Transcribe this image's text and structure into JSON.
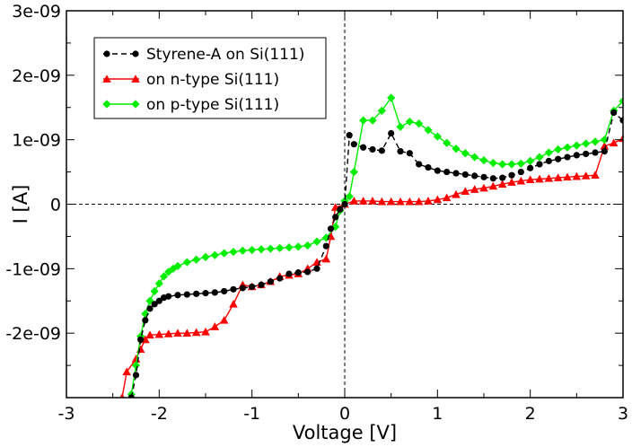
{
  "chart_data": {
    "type": "line",
    "title": "",
    "xlabel": "Voltage [V]",
    "ylabel": "I [A]",
    "xlim": [
      -3,
      3
    ],
    "ylim": [
      -3e-09,
      3e-09
    ],
    "x_ticks": [
      -3,
      -2,
      -1,
      0,
      1,
      2,
      3
    ],
    "x_tick_labels": [
      "-3",
      "-2",
      "-1",
      "0",
      "1",
      "2",
      "3"
    ],
    "y_ticks": [
      -2e-09,
      -1e-09,
      0,
      1e-09,
      2e-09,
      3e-09
    ],
    "y_tick_labels": [
      "-2e-09",
      "-1e-09",
      "0",
      "1e-09",
      "2e-09",
      "3e-09"
    ],
    "zero_lines": true,
    "legend_position": "top-left",
    "series": [
      {
        "name": "Styrene-A on Si(111)",
        "color": "#000000",
        "marker": "circle",
        "line_style": "dashed",
        "points": [
          [
            -2.3,
            -3e-09
          ],
          [
            -2.25,
            -2.65e-09
          ],
          [
            -2.2,
            -2.1e-09
          ],
          [
            -2.15,
            -1.8e-09
          ],
          [
            -2.1,
            -1.62e-09
          ],
          [
            -2.05,
            -1.55e-09
          ],
          [
            -2.0,
            -1.5e-09
          ],
          [
            -1.95,
            -1.45e-09
          ],
          [
            -1.9,
            -1.43e-09
          ],
          [
            -1.8,
            -1.41e-09
          ],
          [
            -1.7,
            -1.4e-09
          ],
          [
            -1.6,
            -1.39e-09
          ],
          [
            -1.5,
            -1.38e-09
          ],
          [
            -1.4,
            -1.37e-09
          ],
          [
            -1.3,
            -1.35e-09
          ],
          [
            -1.2,
            -1.32e-09
          ],
          [
            -1.1,
            -1.3e-09
          ],
          [
            -1.0,
            -1.28e-09
          ],
          [
            -0.9,
            -1.25e-09
          ],
          [
            -0.8,
            -1.2e-09
          ],
          [
            -0.7,
            -1.15e-09
          ],
          [
            -0.6,
            -1.08e-09
          ],
          [
            -0.5,
            -1.06e-09
          ],
          [
            -0.4,
            -1.05e-09
          ],
          [
            -0.3,
            -1e-09
          ],
          [
            -0.2,
            -6.5e-10
          ],
          [
            -0.15,
            -3.8e-10
          ],
          [
            -0.1,
            -2e-10
          ],
          [
            -0.05,
            -8e-11
          ],
          [
            0.0,
            0.0
          ],
          [
            0.05,
            1.07e-09
          ],
          [
            0.1,
            9.3e-10
          ],
          [
            0.2,
            8.8e-10
          ],
          [
            0.3,
            8.5e-10
          ],
          [
            0.4,
            8.3e-10
          ],
          [
            0.5,
            1.1e-09
          ],
          [
            0.6,
            8.2e-10
          ],
          [
            0.7,
            7.9e-10
          ],
          [
            0.8,
            6.2e-10
          ],
          [
            0.9,
            5.7e-10
          ],
          [
            1.0,
            5.2e-10
          ],
          [
            1.1,
            5e-10
          ],
          [
            1.2,
            4.8e-10
          ],
          [
            1.3,
            4.6e-10
          ],
          [
            1.4,
            4.4e-10
          ],
          [
            1.5,
            4.2e-10
          ],
          [
            1.6,
            4e-10
          ],
          [
            1.7,
            4.1e-10
          ],
          [
            1.8,
            4.5e-10
          ],
          [
            1.9,
            5e-10
          ],
          [
            2.0,
            5.6e-10
          ],
          [
            2.1,
            6.2e-10
          ],
          [
            2.2,
            6.7e-10
          ],
          [
            2.3,
            7e-10
          ],
          [
            2.4,
            7.3e-10
          ],
          [
            2.5,
            7.6e-10
          ],
          [
            2.6,
            7.8e-10
          ],
          [
            2.7,
            8e-10
          ],
          [
            2.8,
            8.2e-10
          ],
          [
            2.9,
            1.42e-09
          ],
          [
            3.0,
            1.3e-09
          ]
        ]
      },
      {
        "name": "on n-type Si(111)",
        "color": "#ff0000",
        "marker": "triangle",
        "line_style": "solid",
        "points": [
          [
            -2.4,
            -3e-09
          ],
          [
            -2.35,
            -2.6e-09
          ],
          [
            -2.25,
            -2.4e-09
          ],
          [
            -2.2,
            -2.25e-09
          ],
          [
            -2.15,
            -2.1e-09
          ],
          [
            -2.1,
            -2.03e-09
          ],
          [
            -2.0,
            -2.02e-09
          ],
          [
            -1.9,
            -2.01e-09
          ],
          [
            -1.8,
            -2e-09
          ],
          [
            -1.7,
            -2e-09
          ],
          [
            -1.6,
            -1.99e-09
          ],
          [
            -1.5,
            -1.98e-09
          ],
          [
            -1.4,
            -1.9e-09
          ],
          [
            -1.3,
            -1.8e-09
          ],
          [
            -1.2,
            -1.55e-09
          ],
          [
            -1.1,
            -1.25e-09
          ],
          [
            -1.0,
            -1.28e-09
          ],
          [
            -0.9,
            -1.25e-09
          ],
          [
            -0.8,
            -1.2e-09
          ],
          [
            -0.7,
            -1.12e-09
          ],
          [
            -0.6,
            -1.1e-09
          ],
          [
            -0.5,
            -1.08e-09
          ],
          [
            -0.4,
            -1e-09
          ],
          [
            -0.3,
            -9e-10
          ],
          [
            -0.2,
            -8.5e-10
          ],
          [
            -0.15,
            -5e-10
          ],
          [
            -0.1,
            -5e-11
          ],
          [
            0.0,
            0.0
          ],
          [
            0.1,
            5e-11
          ],
          [
            0.2,
            5e-11
          ],
          [
            0.3,
            5e-11
          ],
          [
            0.4,
            4e-11
          ],
          [
            0.5,
            4e-11
          ],
          [
            0.6,
            4e-11
          ],
          [
            0.7,
            4e-11
          ],
          [
            0.8,
            4e-11
          ],
          [
            0.9,
            5e-11
          ],
          [
            1.0,
            7e-11
          ],
          [
            1.1,
            1e-10
          ],
          [
            1.2,
            1.5e-10
          ],
          [
            1.3,
            2e-10
          ],
          [
            1.4,
            2.3e-10
          ],
          [
            1.5,
            2.5e-10
          ],
          [
            1.6,
            2.8e-10
          ],
          [
            1.7,
            3.1e-10
          ],
          [
            1.8,
            3.4e-10
          ],
          [
            1.9,
            3.6e-10
          ],
          [
            2.0,
            3.8e-10
          ],
          [
            2.1,
            3.9e-10
          ],
          [
            2.2,
            4e-10
          ],
          [
            2.3,
            4.1e-10
          ],
          [
            2.4,
            4.2e-10
          ],
          [
            2.5,
            4.3e-10
          ],
          [
            2.6,
            4.4e-10
          ],
          [
            2.7,
            4.5e-10
          ],
          [
            2.8,
            9e-10
          ],
          [
            2.9,
            9.5e-10
          ],
          [
            3.0,
            1.02e-09
          ]
        ]
      },
      {
        "name": "on p-type Si(111)",
        "color": "#00ee00",
        "marker": "diamond",
        "line_style": "solid",
        "points": [
          [
            -2.3,
            -2.95e-09
          ],
          [
            -2.25,
            -2.5e-09
          ],
          [
            -2.2,
            -2.05e-09
          ],
          [
            -2.15,
            -1.7e-09
          ],
          [
            -2.1,
            -1.5e-09
          ],
          [
            -2.05,
            -1.35e-09
          ],
          [
            -2.0,
            -1.23e-09
          ],
          [
            -1.95,
            -1.12e-09
          ],
          [
            -1.9,
            -1.05e-09
          ],
          [
            -1.85,
            -1e-09
          ],
          [
            -1.8,
            -9.6e-10
          ],
          [
            -1.7,
            -9e-10
          ],
          [
            -1.6,
            -8.6e-10
          ],
          [
            -1.5,
            -8.2e-10
          ],
          [
            -1.4,
            -7.9e-10
          ],
          [
            -1.3,
            -7.6e-10
          ],
          [
            -1.2,
            -7.4e-10
          ],
          [
            -1.1,
            -7.2e-10
          ],
          [
            -1.0,
            -7.1e-10
          ],
          [
            -0.9,
            -7e-10
          ],
          [
            -0.8,
            -6.9e-10
          ],
          [
            -0.7,
            -6.8e-10
          ],
          [
            -0.6,
            -6.7e-10
          ],
          [
            -0.5,
            -6.6e-10
          ],
          [
            -0.4,
            -6.4e-10
          ],
          [
            -0.3,
            -5.8e-10
          ],
          [
            -0.2,
            -5.2e-10
          ],
          [
            -0.1,
            -3.5e-10
          ],
          [
            -0.05,
            -1e-10
          ],
          [
            0.0,
            5e-11
          ],
          [
            0.05,
            1.2e-10
          ],
          [
            0.1,
            5e-10
          ],
          [
            0.2,
            1.3e-09
          ],
          [
            0.3,
            1.3e-09
          ],
          [
            0.4,
            1.45e-09
          ],
          [
            0.5,
            1.65e-09
          ],
          [
            0.6,
            1.2e-09
          ],
          [
            0.7,
            1.28e-09
          ],
          [
            0.8,
            1.25e-09
          ],
          [
            0.9,
            1.15e-09
          ],
          [
            1.0,
            1.05e-09
          ],
          [
            1.1,
            9.5e-10
          ],
          [
            1.2,
            8.6e-10
          ],
          [
            1.3,
            7.9e-10
          ],
          [
            1.4,
            7.3e-10
          ],
          [
            1.5,
            6.8e-10
          ],
          [
            1.6,
            6.4e-10
          ],
          [
            1.7,
            6.2e-10
          ],
          [
            1.8,
            6.2e-10
          ],
          [
            1.9,
            6.3e-10
          ],
          [
            2.0,
            6.7e-10
          ],
          [
            2.1,
            7.3e-10
          ],
          [
            2.2,
            8e-10
          ],
          [
            2.3,
            8.5e-10
          ],
          [
            2.4,
            8.8e-10
          ],
          [
            2.5,
            9.1e-10
          ],
          [
            2.6,
            9.4e-10
          ],
          [
            2.7,
            9.7e-10
          ],
          [
            2.8,
            1e-09
          ],
          [
            2.9,
            1.45e-09
          ],
          [
            3.0,
            1.6e-09
          ]
        ]
      }
    ]
  }
}
